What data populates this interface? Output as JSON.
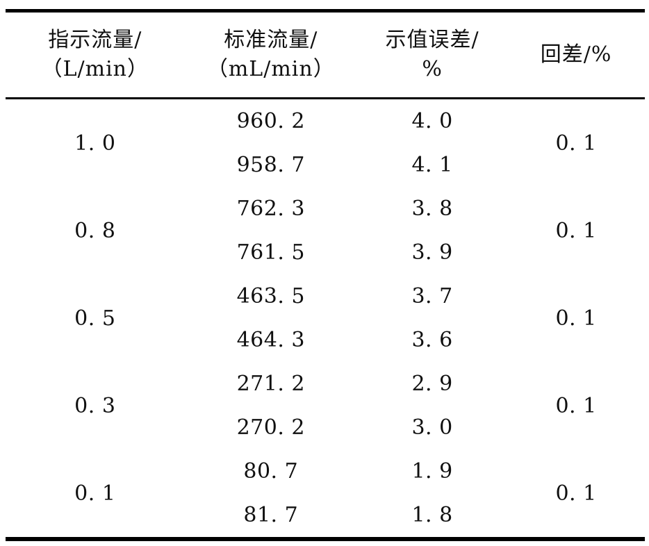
{
  "table": {
    "columns": [
      {
        "line1": "指示流量/",
        "line2": "（L/min）"
      },
      {
        "line1": "标准流量/",
        "line2": "（mL/min）"
      },
      {
        "line1": "示值误差/",
        "line2": "%"
      },
      {
        "line1": "回差/%",
        "line2": ""
      }
    ],
    "groups": [
      {
        "indicated": "1. 0",
        "standard": [
          "960. 2",
          "958. 7"
        ],
        "error": [
          "4. 0",
          "4. 1"
        ],
        "hysteresis": "0. 1"
      },
      {
        "indicated": "0. 8",
        "standard": [
          "762. 3",
          "761. 5"
        ],
        "error": [
          "3. 8",
          "3. 9"
        ],
        "hysteresis": "0. 1"
      },
      {
        "indicated": "0. 5",
        "standard": [
          "463. 5",
          "464. 3"
        ],
        "error": [
          "3. 7",
          "3. 6"
        ],
        "hysteresis": "0. 1"
      },
      {
        "indicated": "0. 3",
        "standard": [
          "271. 2",
          "270. 2"
        ],
        "error": [
          "2. 9",
          "3. 0"
        ],
        "hysteresis": "0. 1"
      },
      {
        "indicated": "0. 1",
        "standard": [
          "80. 7",
          "81. 7"
        ],
        "error": [
          "1. 9",
          "1. 8"
        ],
        "hysteresis": "0. 1"
      }
    ]
  }
}
